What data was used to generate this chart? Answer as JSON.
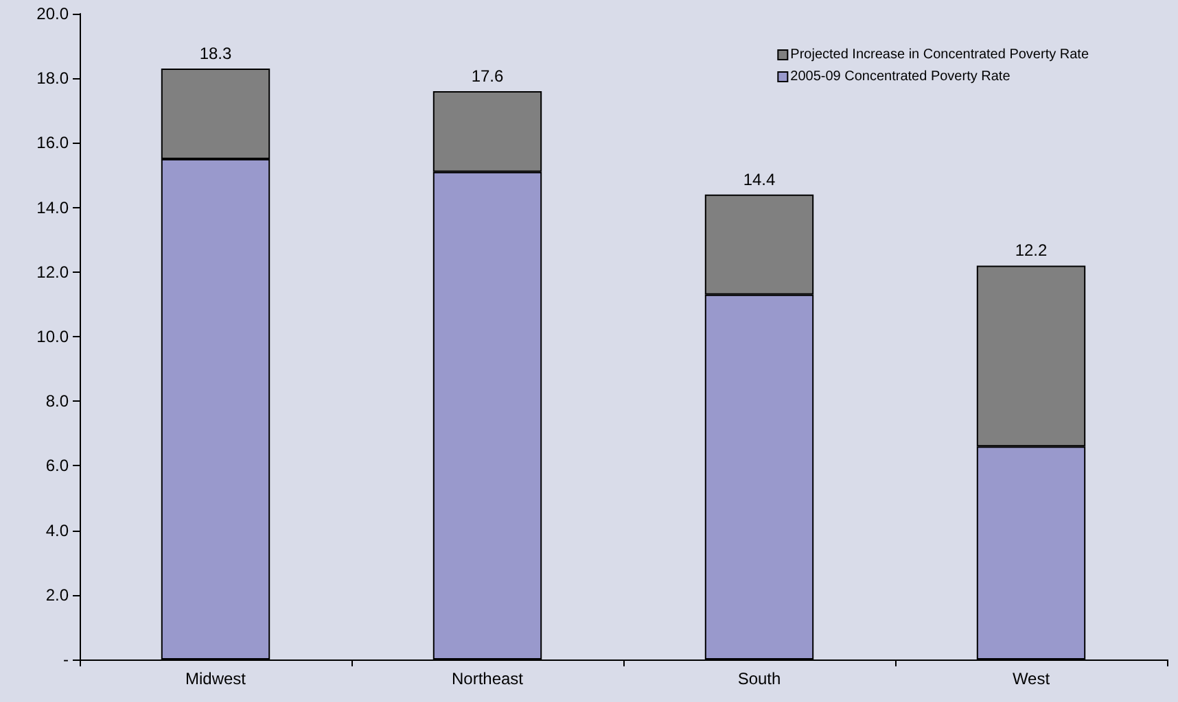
{
  "chart_data": {
    "type": "bar",
    "stacked": true,
    "categories": [
      "Midwest",
      "Northeast",
      "South",
      "West"
    ],
    "series": [
      {
        "name": "2005-09 Concentrated Poverty Rate",
        "color": "#9999cc",
        "values": [
          15.5,
          15.1,
          11.3,
          6.6
        ]
      },
      {
        "name": "Projected Increase in Concentrated Poverty Rate",
        "color": "#808080",
        "values": [
          2.8,
          2.5,
          3.1,
          5.6
        ]
      }
    ],
    "totals": [
      "18.3",
      "17.6",
      "14.4",
      "12.2"
    ],
    "ylim": [
      0,
      20
    ],
    "yticks": [
      {
        "value": 0,
        "label": "-"
      },
      {
        "value": 2,
        "label": "2.0"
      },
      {
        "value": 4,
        "label": "4.0"
      },
      {
        "value": 6,
        "label": "6.0"
      },
      {
        "value": 8,
        "label": "8.0"
      },
      {
        "value": 10,
        "label": "10.0"
      },
      {
        "value": 12,
        "label": "12.0"
      },
      {
        "value": 14,
        "label": "14.0"
      },
      {
        "value": 16,
        "label": "16.0"
      },
      {
        "value": 18,
        "label": "18.0"
      },
      {
        "value": 20,
        "label": "20.0"
      }
    ],
    "legend": "top right"
  }
}
